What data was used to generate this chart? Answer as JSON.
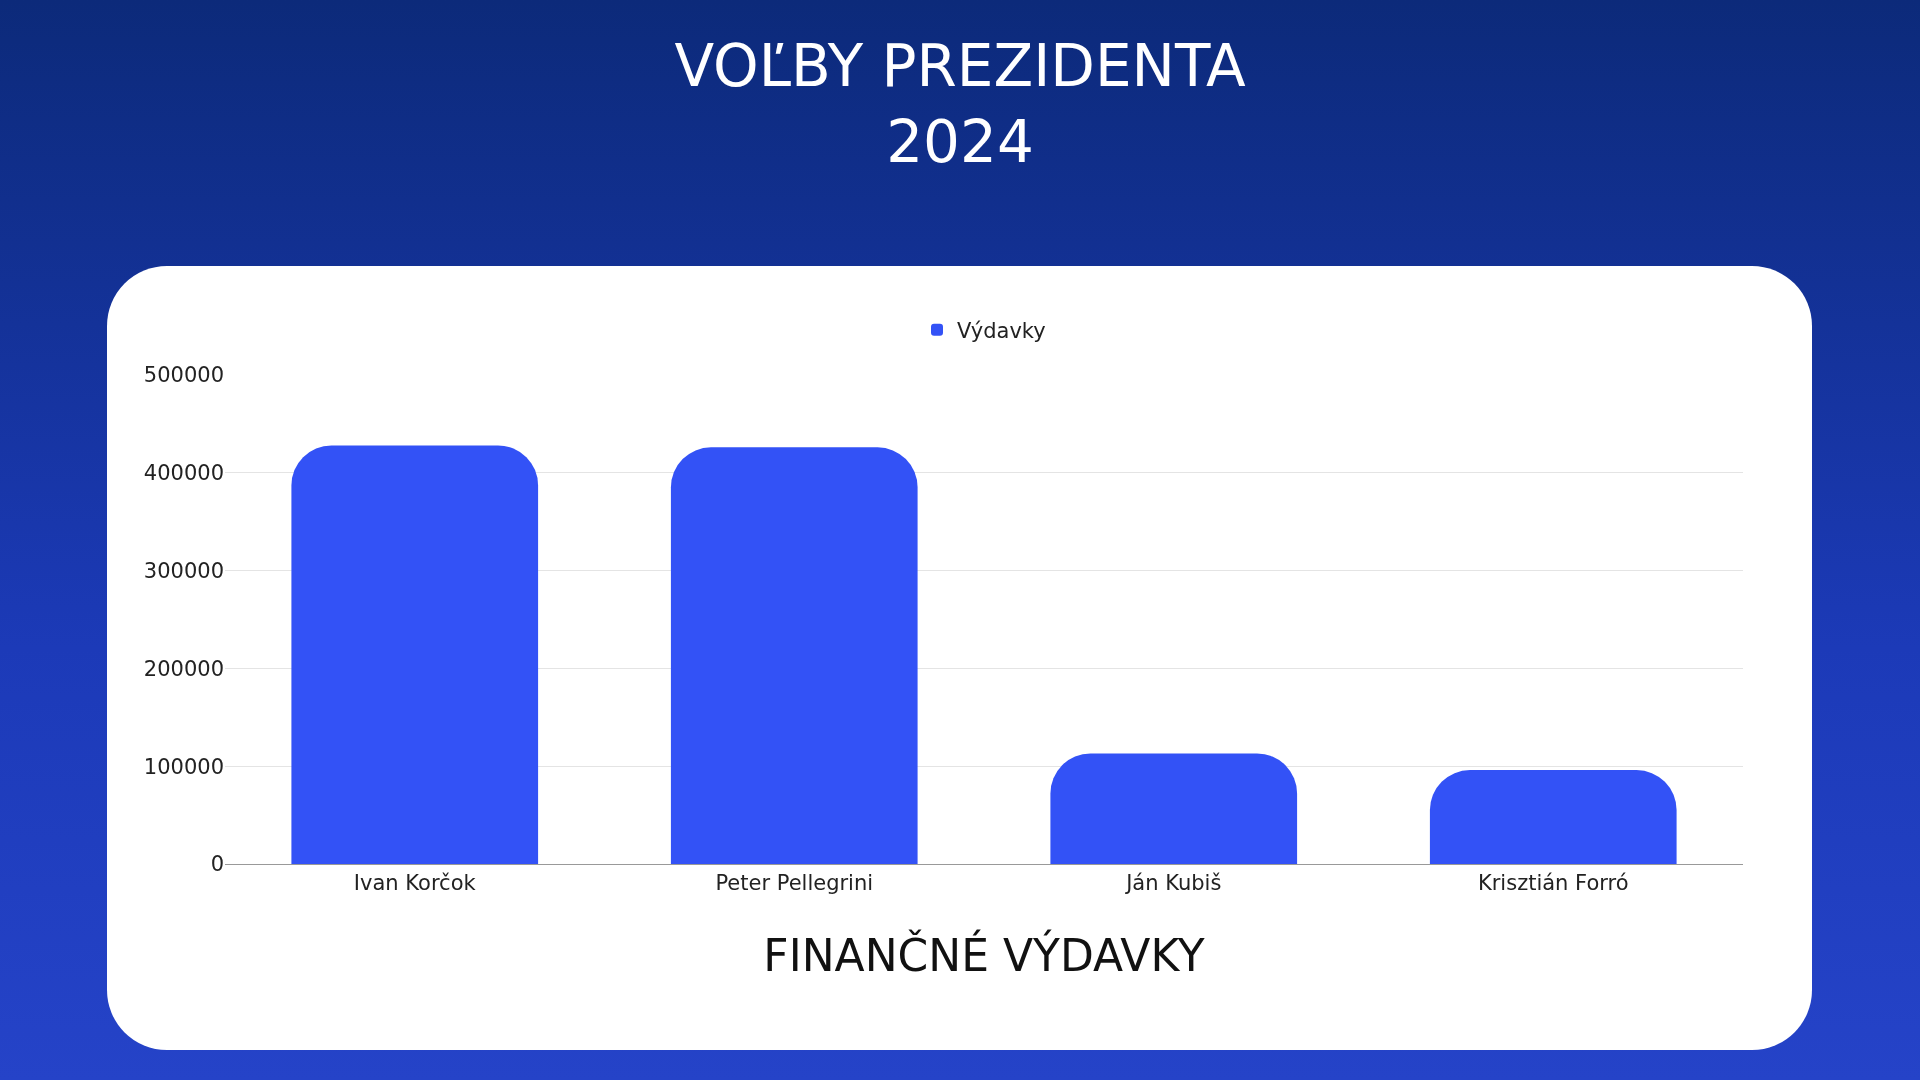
{
  "chart_data": {
    "type": "bar",
    "title": "VOĽBY PREZIDENTA\n2024",
    "xlabel": "FINANČNÉ VÝDAVKY",
    "categories": [
      "Ivan Korčok",
      "Peter Pellegrini",
      "Ján Kubiš",
      "Krisztián Forró"
    ],
    "series": [
      {
        "name": "Výdavky",
        "color": "#3352f6",
        "values": [
          428000,
          426000,
          113000,
          96000
        ]
      }
    ],
    "ylim": [
      0,
      500000
    ],
    "yticks": [
      0,
      100000,
      200000,
      300000,
      400000,
      500000
    ],
    "grid": "y",
    "legend": "top"
  }
}
